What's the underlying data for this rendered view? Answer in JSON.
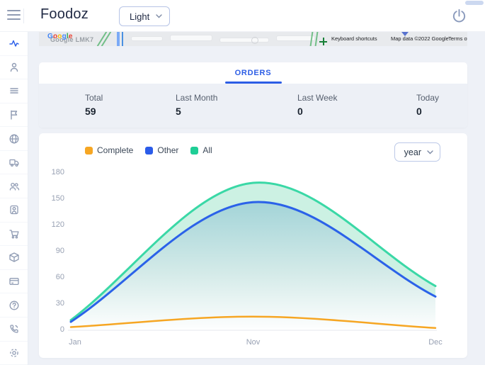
{
  "header": {
    "title": "Foodoz",
    "theme_selector": {
      "value": "Light"
    }
  },
  "map": {
    "logo": "Google",
    "logo_colors": [
      "#4285F4",
      "#EA4335",
      "#FBBC05",
      "#4285F4",
      "#34A853",
      "#EA4335"
    ],
    "watermark": "Google LMK7",
    "keyboard_shortcuts": "Keyboard shortcuts",
    "attribution": "Map data ©2022 Google",
    "terms": "Terms of Use"
  },
  "sidebar": {
    "active_index": 0,
    "items": [
      "activity",
      "user",
      "list",
      "flag",
      "globe",
      "truck",
      "users",
      "user-badge",
      "cart",
      "package",
      "credit-card",
      "help-circle",
      "phone",
      "gear"
    ]
  },
  "orders": {
    "tab_label": "ORDERS",
    "stats": [
      {
        "label": "Total",
        "value": "59"
      },
      {
        "label": "Last Month",
        "value": "5"
      },
      {
        "label": "Last Week",
        "value": "0"
      },
      {
        "label": "Today",
        "value": "0"
      }
    ]
  },
  "chart": {
    "legend": [
      {
        "label": "Complete",
        "color": "#f6a623"
      },
      {
        "label": "Other",
        "color": "#2b5ce9"
      },
      {
        "label": "All",
        "color": "#1fce96"
      }
    ],
    "period_selector": {
      "value": "year"
    }
  },
  "chart_data": {
    "type": "area",
    "x_labels": [
      "Jan",
      "Nov",
      "Dec"
    ],
    "series": [
      {
        "name": "Complete",
        "color": "#f6a623",
        "values": [
          2,
          14,
          1
        ]
      },
      {
        "name": "Other",
        "color": "#2b62e9",
        "values": [
          8,
          145,
          37
        ],
        "fill": "gradient"
      },
      {
        "name": "All",
        "color": "#3ad8a6",
        "values": [
          10,
          167,
          49
        ],
        "fill": "#c9f0e1"
      }
    ],
    "ylim": [
      0,
      180
    ],
    "yticks": [
      180,
      150,
      120,
      90,
      60,
      30,
      0
    ],
    "grid": false,
    "legend_position": "top-left",
    "title": "",
    "xlabel": "",
    "ylabel": ""
  },
  "colors": {
    "accent": "#2c5de5",
    "sidebar_active": "#2f62e9",
    "page_bg": "#eef1f7",
    "stats_bg": "#edf0f6",
    "area_mint": "#c9f0e1",
    "area_teal_top": "#a3d4d8"
  }
}
